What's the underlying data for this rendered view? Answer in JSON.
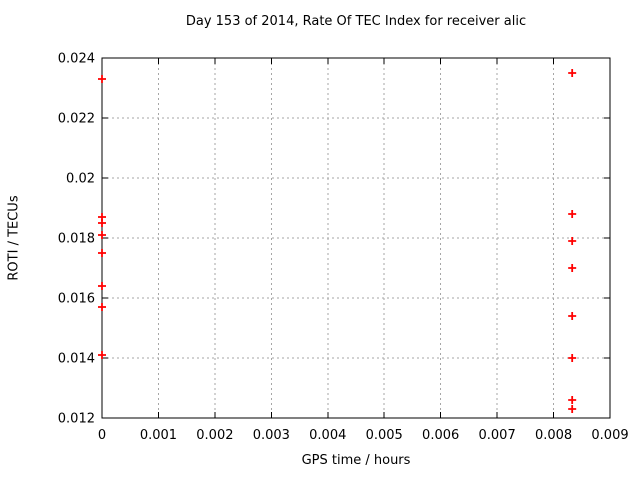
{
  "chart_data": {
    "type": "scatter",
    "title": "Day 153 of 2014, Rate Of TEC Index for receiver alic",
    "xlabel": "GPS time / hours",
    "ylabel": "ROTI / TECUs",
    "xlim": [
      0,
      0.009
    ],
    "ylim": [
      0.012,
      0.024
    ],
    "x_ticks": [
      0,
      0.001,
      0.002,
      0.003,
      0.004,
      0.005,
      0.006,
      0.007,
      0.008,
      0.009
    ],
    "x_tick_labels": [
      "0",
      "0.001",
      "0.002",
      "0.003",
      "0.004",
      "0.005",
      "0.006",
      "0.007",
      "0.008",
      "0.009"
    ],
    "y_ticks": [
      0.012,
      0.014,
      0.016,
      0.018,
      0.02,
      0.022,
      0.024
    ],
    "y_tick_labels": [
      "0.012",
      "0.014",
      "0.016",
      "0.018",
      "0.02",
      "0.022",
      "0.024"
    ],
    "grid": true,
    "legend_position": "none",
    "marker": "plus",
    "colors": {
      "marker": "#ff0000",
      "grid": "#a6a6a6",
      "border": "#000000",
      "background": "#ffffff"
    },
    "series": [
      {
        "name": "ROTI",
        "points": [
          [
            0,
            0.0233
          ],
          [
            0,
            0.0187
          ],
          [
            0,
            0.0185
          ],
          [
            0,
            0.0181
          ],
          [
            0,
            0.0175
          ],
          [
            0,
            0.0164
          ],
          [
            0,
            0.0157
          ],
          [
            0,
            0.0141
          ],
          [
            0.00833,
            0.0235
          ],
          [
            0.00833,
            0.0188
          ],
          [
            0.00833,
            0.0179
          ],
          [
            0.00833,
            0.017
          ],
          [
            0.00833,
            0.0154
          ],
          [
            0.00833,
            0.014
          ],
          [
            0.00833,
            0.0126
          ],
          [
            0.00833,
            0.0123
          ]
        ]
      }
    ]
  }
}
